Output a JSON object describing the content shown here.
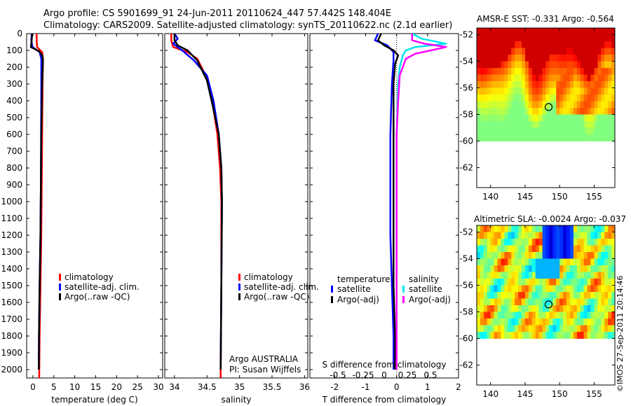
{
  "header": {
    "line1": "Argo profile: CS 5901699_91 24-Jun-2011 20110624_447 57.442S 148.404E",
    "line2": "Climatology: CARS2009. Satellite-adjusted climatology: synTS_20110622.nc (2.1d earlier)"
  },
  "credit": "©IMOS 27-Sep-2011 20:14:46",
  "colors": {
    "climatology": "#ff0000",
    "satellite": "#0000ff",
    "argo": "#000000",
    "sal_satellite": "#00e5ee",
    "sal_argo": "#ff00ff"
  },
  "chart_data": [
    {
      "type": "line",
      "id": "temperature",
      "xlabel": "temperature (deg C)",
      "xlim": [
        -1.5,
        31
      ],
      "xticks": [
        0,
        5,
        10,
        15,
        20,
        25,
        30
      ],
      "ylim": [
        2050,
        0
      ],
      "yticks": [
        0,
        100,
        200,
        300,
        400,
        500,
        600,
        700,
        800,
        900,
        1000,
        1100,
        1200,
        1300,
        1400,
        1500,
        1600,
        1700,
        1800,
        1900,
        2000
      ],
      "legend": [
        "climatology",
        "satellite-adj. clim.",
        "Argo(..raw -QC)"
      ],
      "series": [
        {
          "key": "climatology",
          "points": [
            [
              0.9,
              0
            ],
            [
              0.9,
              40
            ],
            [
              1.0,
              80
            ],
            [
              2.2,
              110
            ],
            [
              2.4,
              150
            ],
            [
              2.3,
              300
            ],
            [
              2.2,
              600
            ],
            [
              2.1,
              900
            ],
            [
              2.0,
              1200
            ],
            [
              1.8,
              1500
            ],
            [
              1.6,
              1800
            ],
            [
              1.5,
              2050
            ]
          ]
        },
        {
          "key": "satellite",
          "points": [
            [
              -0.3,
              0
            ],
            [
              -0.4,
              40
            ],
            [
              -0.1,
              80
            ],
            [
              1.6,
              110
            ],
            [
              2.0,
              150
            ],
            [
              2.0,
              300
            ],
            [
              1.95,
              600
            ],
            [
              1.9,
              900
            ],
            [
              1.8,
              1200
            ],
            [
              1.6,
              1500
            ],
            [
              1.45,
              1800
            ],
            [
              1.4,
              2000
            ]
          ]
        },
        {
          "key": "argo",
          "points": [
            [
              -0.2,
              0
            ],
            [
              -0.3,
              40
            ],
            [
              -0.5,
              80
            ],
            [
              1.5,
              105
            ],
            [
              2.2,
              130
            ],
            [
              2.4,
              160
            ],
            [
              2.2,
              300
            ],
            [
              2.0,
              600
            ],
            [
              1.9,
              900
            ],
            [
              1.8,
              1200
            ],
            [
              1.6,
              1500
            ],
            [
              1.45,
              1800
            ],
            [
              1.4,
              2000
            ]
          ]
        }
      ]
    },
    {
      "type": "line",
      "id": "salinity",
      "xlabel": "salinity",
      "xlim": [
        33.85,
        36.05
      ],
      "xticks": [
        34,
        34.5,
        35,
        35.5,
        36
      ],
      "ylim": [
        2050,
        0
      ],
      "legend": [
        "climatology",
        "satellite-adj. clim.",
        "Argo(..raw -QC)"
      ],
      "note_lines": [
        "Argo AUSTRALIA",
        "PI: Susan Wijffels"
      ],
      "series": [
        {
          "key": "climatology",
          "points": [
            [
              33.95,
              0
            ],
            [
              33.95,
              40
            ],
            [
              33.98,
              80
            ],
            [
              34.2,
              110
            ],
            [
              34.35,
              150
            ],
            [
              34.48,
              250
            ],
            [
              34.55,
              350
            ],
            [
              34.6,
              450
            ],
            [
              34.66,
              600
            ],
            [
              34.7,
              800
            ],
            [
              34.72,
              1000
            ],
            [
              34.72,
              1500
            ],
            [
              34.71,
              2050
            ]
          ]
        },
        {
          "key": "satellite",
          "points": [
            [
              34.0,
              0
            ],
            [
              34.05,
              30
            ],
            [
              33.98,
              60
            ],
            [
              34.05,
              80
            ],
            [
              34.1,
              95
            ],
            [
              34.15,
              110
            ],
            [
              34.3,
              160
            ],
            [
              34.5,
              250
            ],
            [
              34.6,
              400
            ],
            [
              34.68,
              600
            ],
            [
              34.72,
              800
            ],
            [
              34.73,
              1000
            ],
            [
              34.72,
              1500
            ],
            [
              34.71,
              2000
            ]
          ]
        },
        {
          "key": "argo",
          "points": [
            [
              34.0,
              0
            ],
            [
              34.0,
              40
            ],
            [
              34.05,
              70
            ],
            [
              34.2,
              100
            ],
            [
              34.35,
              160
            ],
            [
              34.5,
              280
            ],
            [
              34.6,
              450
            ],
            [
              34.68,
              600
            ],
            [
              34.72,
              800
            ],
            [
              34.73,
              1000
            ],
            [
              34.72,
              1500
            ],
            [
              34.71,
              2000
            ]
          ]
        }
      ]
    },
    {
      "type": "line",
      "id": "differences",
      "xlabel": "T difference from climatology",
      "xlabel_top": "S difference from climatology",
      "xlim": [
        -2.8,
        2.0
      ],
      "xticks": [
        -2,
        -1,
        0,
        1,
        2
      ],
      "top_tick_labels": [
        "-0.5",
        "-0.25",
        "0",
        "0.25",
        "0.5"
      ],
      "ylim": [
        2050,
        0
      ],
      "legend_left_title": "temperature",
      "legend_right_title": "salinity",
      "legend_left": [
        "satellite",
        "Argo(-adj)"
      ],
      "legend_right": [
        "satellite",
        "Argo(-adj)"
      ],
      "series": [
        {
          "key": "satellite",
          "points": [
            [
              -0.6,
              0
            ],
            [
              -0.7,
              40
            ],
            [
              -0.3,
              70
            ],
            [
              -0.1,
              110
            ],
            [
              -0.1,
              160
            ],
            [
              -0.15,
              300
            ],
            [
              -0.2,
              600
            ],
            [
              -0.2,
              900
            ],
            [
              -0.2,
              1200
            ],
            [
              -0.15,
              1500
            ],
            [
              -0.1,
              1800
            ],
            [
              -0.1,
              2000
            ]
          ]
        },
        {
          "key": "argo",
          "points": [
            [
              -0.5,
              0
            ],
            [
              -0.6,
              40
            ],
            [
              -0.4,
              70
            ],
            [
              -0.1,
              100
            ],
            [
              0.05,
              130
            ],
            [
              -0.05,
              180
            ],
            [
              -0.1,
              300
            ],
            [
              -0.1,
              600
            ],
            [
              -0.1,
              900
            ],
            [
              -0.1,
              1200
            ],
            [
              -0.1,
              1500
            ],
            [
              -0.05,
              1800
            ],
            [
              -0.05,
              2000
            ]
          ]
        },
        {
          "key": "sal_satellite",
          "points": [
            [
              0.5,
              0
            ],
            [
              0.8,
              30
            ],
            [
              1.6,
              60
            ],
            [
              0.6,
              80
            ],
            [
              0.3,
              100
            ],
            [
              0.2,
              130
            ],
            [
              0.1,
              200
            ],
            [
              0.05,
              300
            ],
            [
              0.0,
              600
            ],
            [
              0.0,
              900
            ],
            [
              0.0,
              1200
            ],
            [
              0.0,
              1500
            ],
            [
              0.0,
              1800
            ],
            [
              0.0,
              2000
            ]
          ]
        },
        {
          "key": "sal_argo",
          "points": [
            [
              0.5,
              0
            ],
            [
              0.5,
              40
            ],
            [
              0.9,
              60
            ],
            [
              1.6,
              80
            ],
            [
              1.1,
              100
            ],
            [
              0.6,
              120
            ],
            [
              0.3,
              150
            ],
            [
              0.1,
              250
            ],
            [
              0.05,
              400
            ],
            [
              0.0,
              600
            ],
            [
              0.0,
              1000
            ],
            [
              0.0,
              1500
            ],
            [
              0.0,
              2000
            ]
          ]
        }
      ]
    },
    {
      "type": "heatmap",
      "id": "sst_map",
      "title": "AMSR-E SST: -0.331  Argo: -0.564",
      "xlim": [
        138,
        158
      ],
      "ylim": [
        -63.5,
        -51.5
      ],
      "xticks": [
        140,
        145,
        150,
        155
      ],
      "yticks": [
        -52,
        -54,
        -56,
        -58,
        -60,
        -62
      ],
      "marker": [
        148.404,
        -57.442
      ]
    },
    {
      "type": "heatmap",
      "id": "sla_map",
      "title": "Altimetric SLA: -0.0024  Argo: -0.037",
      "xlim": [
        138,
        158
      ],
      "ylim": [
        -63.5,
        -51.5
      ],
      "xticks": [
        140,
        145,
        150,
        155
      ],
      "yticks": [
        -52,
        -54,
        -56,
        -58,
        -60,
        -62
      ],
      "marker": [
        148.404,
        -57.442
      ]
    }
  ]
}
